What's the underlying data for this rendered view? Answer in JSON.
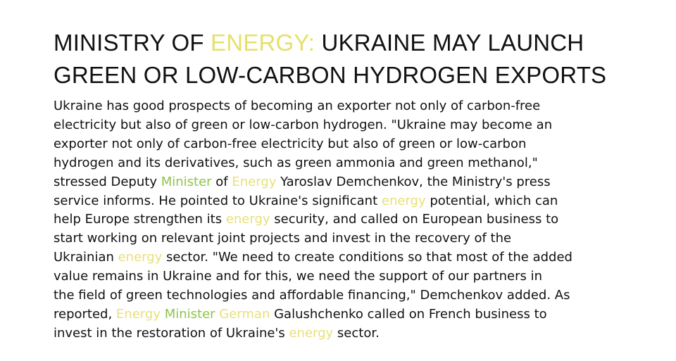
{
  "headline": {
    "part1": "MINISTRY OF ",
    "accent": "ENERGY:",
    "part2": " UKRAINE MAY LAUNCH",
    "line2": "GREEN OR LOW-CARBON HYDROGEN EXPORTS"
  },
  "body": {
    "l1": "Ukraine has good prospects of becoming an exporter not only of carbon-free",
    "l2": "electricity but also of green or low-carbon hydrogen. \"Ukraine may become an",
    "l3": "exporter not only of carbon-free electricity but also of green or low-carbon",
    "l4": "hydrogen and its derivatives, such as green ammonia and green methanol,\"",
    "l5_a": "stressed Deputy ",
    "l5_minister": "Minister",
    "l5_b": " of ",
    "l5_energy": "Energy",
    "l5_c": " Yaroslav Demchenkov, the Ministry's press",
    "l6_a": "service informs. He pointed to Ukraine's significant ",
    "l6_energy": "energy",
    "l6_b": " potential, which can",
    "l7_a": "help Europe strengthen its ",
    "l7_energy": "energy",
    "l7_b": " security, and called on European business to",
    "l8": "start working on relevant joint projects and invest in the recovery of the",
    "l9_a": "Ukrainian ",
    "l9_energy": "energy",
    "l9_b": " sector. \"We need to create conditions so that most of the added",
    "l10": "value remains in Ukraine and for this, we need the support of our partners in",
    "l11": "the field of green technologies and affordable financing,\" Demchenkov added. As",
    "l12_a": "reported, ",
    "l12_energy": "Energy",
    "l12_space1": " ",
    "l12_minister": "Minister",
    "l12_space2": " ",
    "l12_german": "German",
    "l12_b": " Galushchenko called on French business to",
    "l13_a": "invest in the restoration of Ukraine's ",
    "l13_energy": "energy",
    "l13_b": " sector."
  },
  "colors": {
    "keyword_yellow": "#e8e07a",
    "keyword_green": "#8fc44a",
    "text": "#111111",
    "background": "#ffffff"
  }
}
